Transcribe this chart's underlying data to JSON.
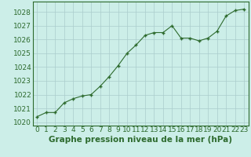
{
  "x": [
    0,
    1,
    2,
    3,
    4,
    5,
    6,
    7,
    8,
    9,
    10,
    11,
    12,
    13,
    14,
    15,
    16,
    17,
    18,
    19,
    20,
    21,
    22,
    23
  ],
  "y": [
    1020.4,
    1020.7,
    1020.7,
    1021.4,
    1021.7,
    1021.9,
    1022.0,
    1022.6,
    1023.3,
    1024.1,
    1025.0,
    1025.6,
    1026.3,
    1026.5,
    1026.5,
    1027.0,
    1026.1,
    1026.1,
    1025.9,
    1026.1,
    1026.6,
    1027.7,
    1028.1,
    1028.2
  ],
  "line_color": "#2d6a2d",
  "marker": "+",
  "bg_color": "#cceee8",
  "grid_color": "#aacccc",
  "xlabel": "Graphe pression niveau de la mer (hPa)",
  "xlabel_fontsize": 7.5,
  "tick_fontsize": 6.5,
  "ylim": [
    1019.75,
    1028.75
  ],
  "yticks": [
    1020,
    1021,
    1022,
    1023,
    1024,
    1025,
    1026,
    1027,
    1028
  ],
  "xticks": [
    0,
    1,
    2,
    3,
    4,
    5,
    6,
    7,
    8,
    9,
    10,
    11,
    12,
    13,
    14,
    15,
    16,
    17,
    18,
    19,
    20,
    21,
    22,
    23
  ]
}
